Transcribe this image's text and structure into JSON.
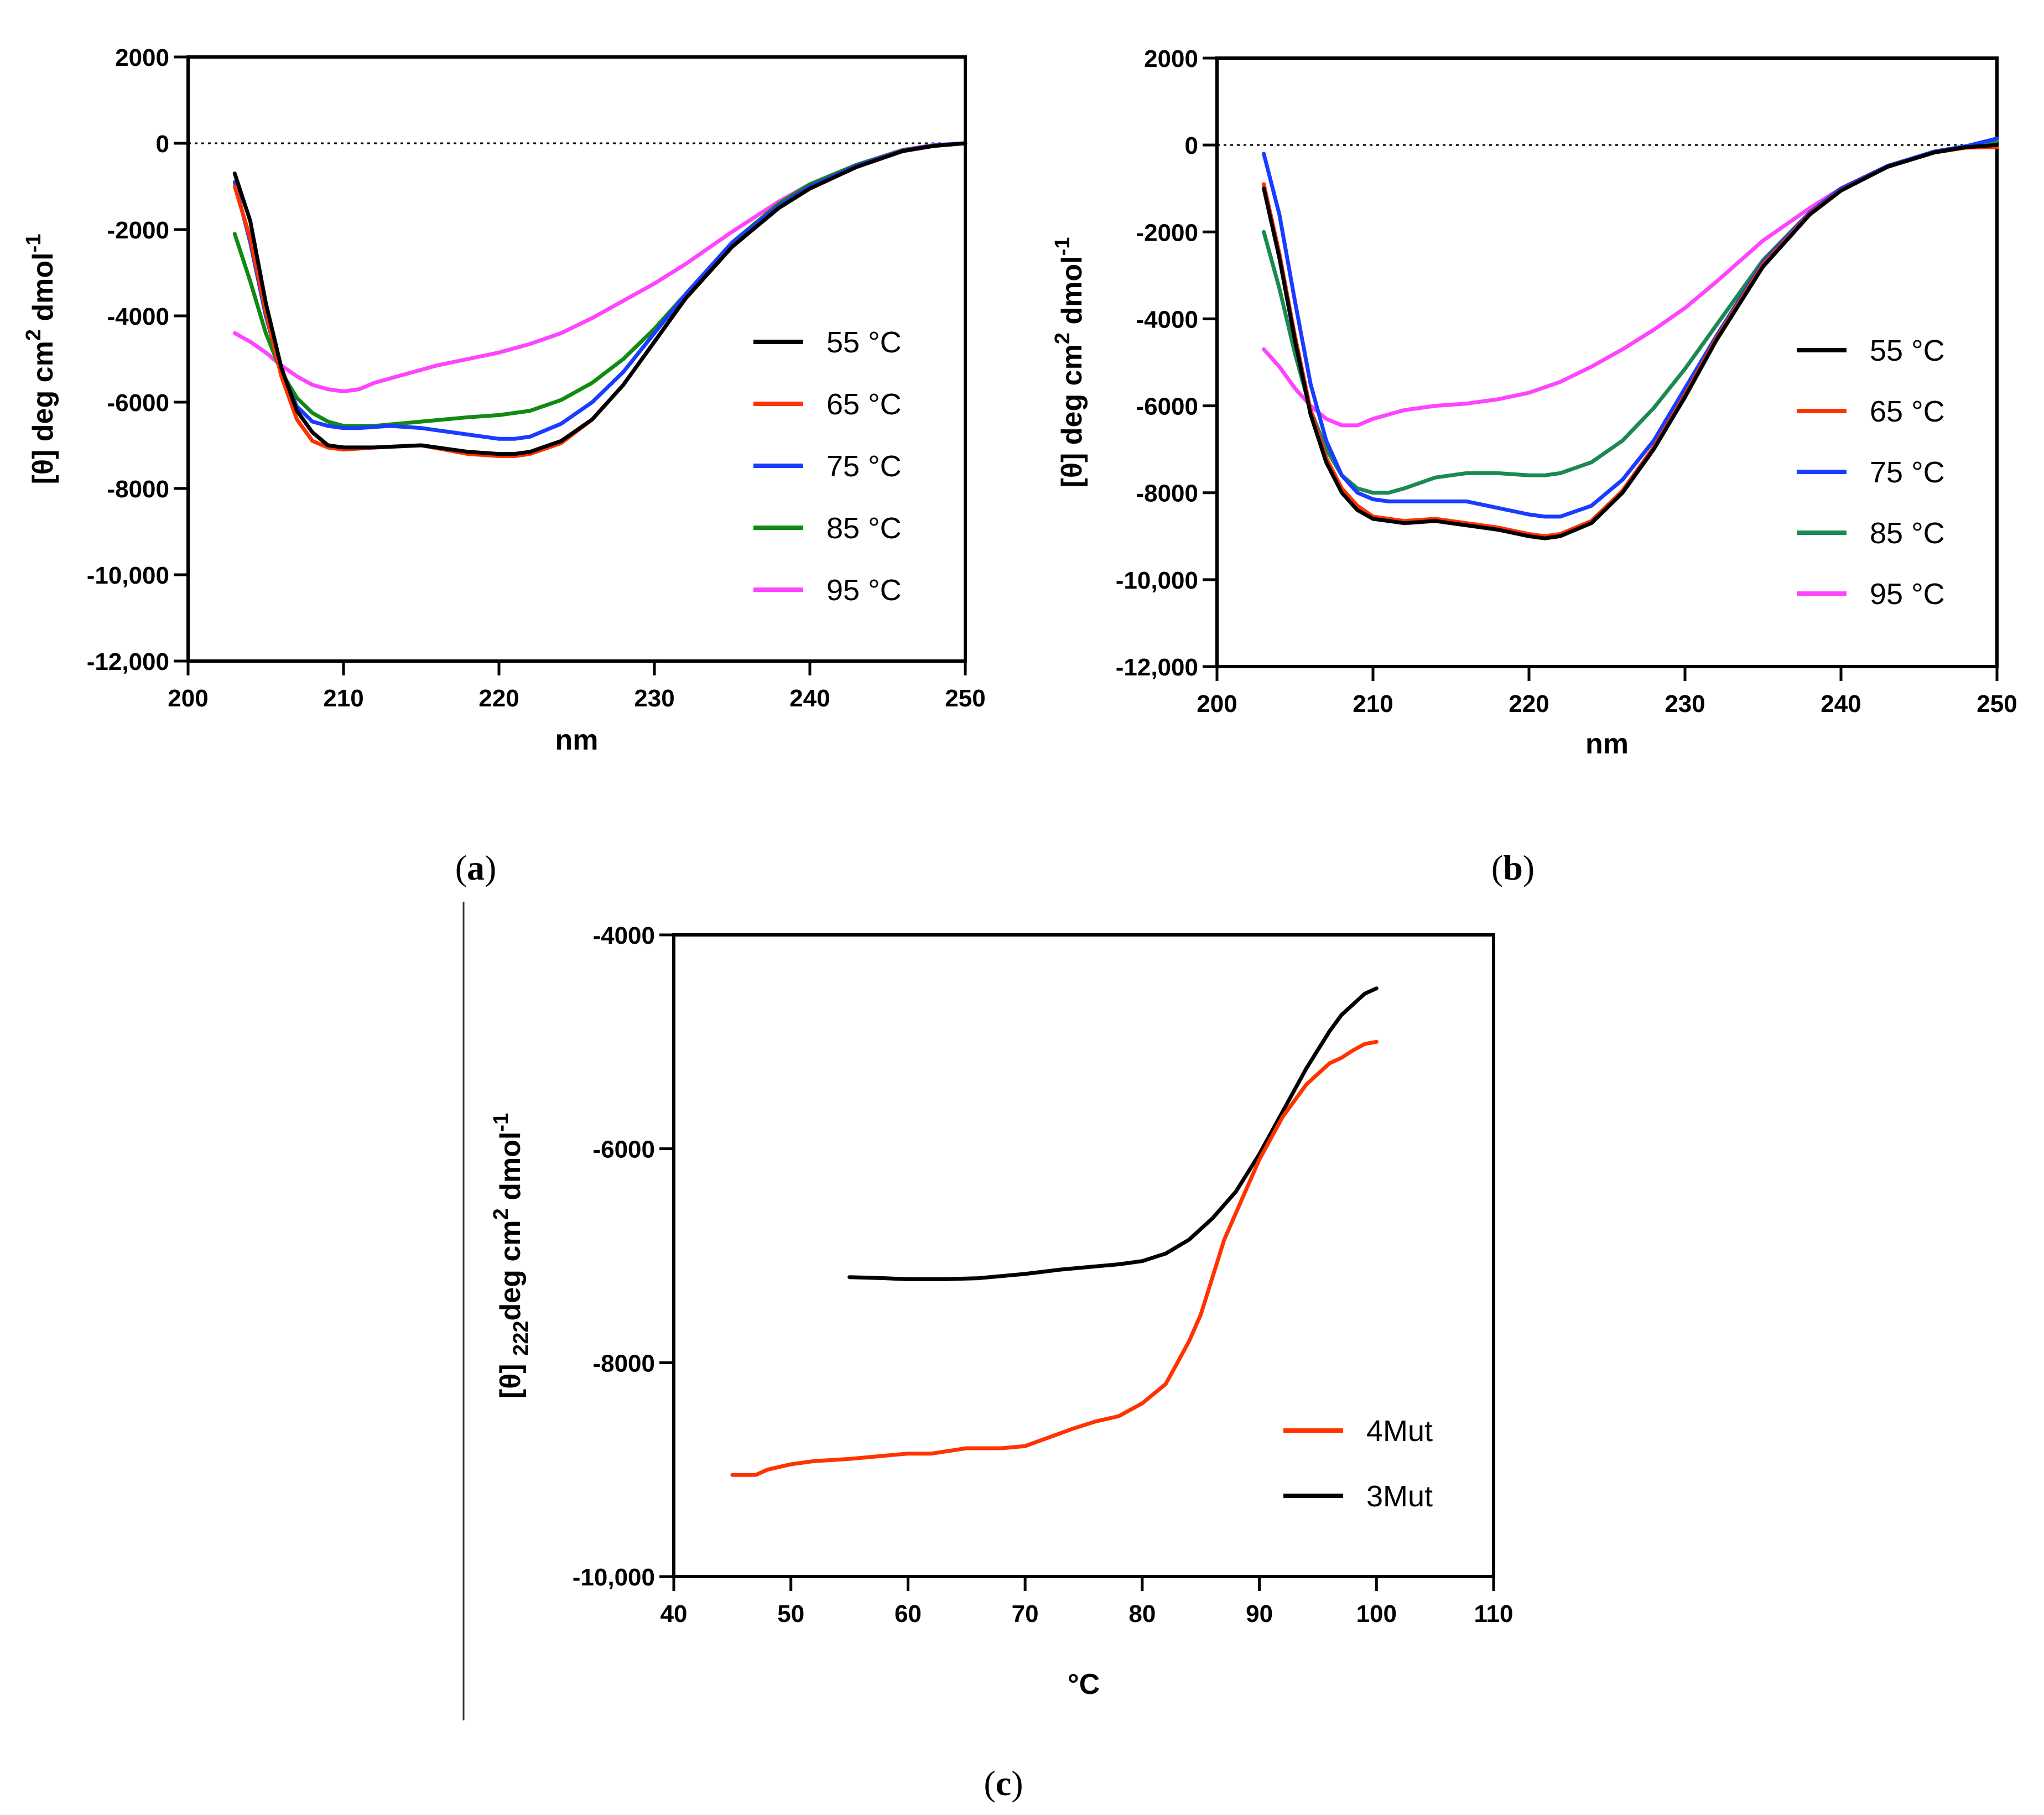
{
  "chart_data": [
    {
      "type": "line",
      "panel_label": "(a)",
      "xlabel": "nm",
      "ylabel": {
        "base": "[θ] deg cm",
        "sup": "2",
        "mid": " dmol",
        "sup2": "-1"
      },
      "xlim": [
        200,
        250
      ],
      "ylim": [
        -12000,
        2000
      ],
      "xticks": [
        200,
        210,
        220,
        230,
        240,
        250
      ],
      "xtick_labels": [
        "200",
        "210",
        "220",
        "230",
        "240",
        "250"
      ],
      "yticks": [
        2000,
        0,
        -2000,
        -4000,
        -6000,
        -8000,
        -10000,
        -12000
      ],
      "ytick_labels": [
        "2000",
        "0",
        "-2000",
        "-4000",
        "-6000",
        "-8000",
        "-10,000",
        "-12,000"
      ],
      "zero_line": true,
      "legend_position": "right",
      "series": [
        {
          "name": "55 °C",
          "color": "#000000",
          "x": [
            203,
            204,
            205,
            206,
            207,
            208,
            209,
            210,
            212,
            215,
            218,
            220,
            221,
            222,
            224,
            226,
            228,
            230,
            232,
            235,
            238,
            240,
            243,
            246,
            248,
            250
          ],
          "y": [
            -700,
            -1800,
            -3700,
            -5200,
            -6200,
            -6700,
            -7000,
            -7050,
            -7050,
            -7000,
            -7150,
            -7200,
            -7200,
            -7150,
            -6900,
            -6400,
            -5600,
            -4600,
            -3600,
            -2400,
            -1500,
            -1050,
            -550,
            -180,
            -60,
            0
          ]
        },
        {
          "name": "65 °C",
          "color": "#ff3300",
          "x": [
            203,
            204,
            205,
            206,
            207,
            208,
            209,
            210,
            212,
            215,
            218,
            220,
            221,
            222,
            224,
            226,
            228,
            230,
            232,
            235,
            238,
            240,
            243,
            246,
            248,
            250
          ],
          "y": [
            -1000,
            -2200,
            -3900,
            -5400,
            -6400,
            -6900,
            -7050,
            -7100,
            -7050,
            -7000,
            -7200,
            -7250,
            -7250,
            -7200,
            -6950,
            -6400,
            -5600,
            -4600,
            -3600,
            -2400,
            -1500,
            -1050,
            -550,
            -180,
            -60,
            0
          ]
        },
        {
          "name": "75 °C",
          "color": "#1a3cff",
          "x": [
            203,
            204,
            205,
            206,
            207,
            208,
            209,
            210,
            211,
            213,
            215,
            218,
            220,
            221,
            222,
            224,
            226,
            228,
            230,
            232,
            235,
            238,
            240,
            243,
            246,
            248,
            250
          ],
          "y": [
            -900,
            -2300,
            -4000,
            -5300,
            -6100,
            -6450,
            -6550,
            -6600,
            -6600,
            -6550,
            -6600,
            -6750,
            -6850,
            -6850,
            -6800,
            -6500,
            -6000,
            -5300,
            -4400,
            -3500,
            -2300,
            -1450,
            -1000,
            -520,
            -170,
            -50,
            0
          ]
        },
        {
          "name": "85 °C",
          "color": "#118a11",
          "x": [
            203,
            204,
            205,
            206,
            207,
            208,
            209,
            210,
            212,
            215,
            218,
            220,
            222,
            224,
            226,
            228,
            230,
            232,
            235,
            238,
            240,
            243,
            246,
            248,
            250
          ],
          "y": [
            -2100,
            -3200,
            -4400,
            -5300,
            -5900,
            -6250,
            -6450,
            -6550,
            -6550,
            -6450,
            -6350,
            -6300,
            -6200,
            -5950,
            -5550,
            -5000,
            -4300,
            -3500,
            -2300,
            -1400,
            -950,
            -500,
            -160,
            -50,
            0
          ]
        },
        {
          "name": "95 °C",
          "color": "#ff44ff",
          "x": [
            203,
            204,
            205,
            206,
            207,
            208,
            209,
            210,
            211,
            212,
            214,
            216,
            218,
            220,
            222,
            224,
            226,
            228,
            230,
            232,
            235,
            238,
            240,
            243,
            246,
            248,
            250
          ],
          "y": [
            -4400,
            -4600,
            -4850,
            -5150,
            -5400,
            -5600,
            -5700,
            -5750,
            -5700,
            -5550,
            -5350,
            -5150,
            -5000,
            -4850,
            -4650,
            -4400,
            -4050,
            -3650,
            -3250,
            -2800,
            -2050,
            -1350,
            -950,
            -500,
            -150,
            -40,
            0
          ]
        }
      ]
    },
    {
      "type": "line",
      "panel_label": "(b)",
      "xlabel": "nm",
      "ylabel": {
        "base": "[θ] deg cm",
        "sup": "2",
        "mid": " dmol",
        "sup2": "-1"
      },
      "xlim": [
        200,
        250
      ],
      "ylim": [
        -12000,
        2000
      ],
      "xticks": [
        200,
        210,
        220,
        230,
        240,
        250
      ],
      "xtick_labels": [
        "200",
        "210",
        "220",
        "230",
        "240",
        "250"
      ],
      "yticks": [
        2000,
        0,
        -2000,
        -4000,
        -6000,
        -8000,
        -10000,
        -12000
      ],
      "ytick_labels": [
        "2000",
        "0",
        "-2000",
        "-4000",
        "-6000",
        "-8000",
        "-10,000",
        "-12,000"
      ],
      "zero_line": true,
      "legend_position": "right",
      "series": [
        {
          "name": "55 °C",
          "color": "#000000",
          "x": [
            203,
            204,
            205,
            206,
            207,
            208,
            209,
            210,
            212,
            214,
            216,
            218,
            220,
            221,
            222,
            224,
            226,
            228,
            230,
            232,
            235,
            238,
            240,
            243,
            246,
            248,
            250
          ],
          "y": [
            -1000,
            -2600,
            -4500,
            -6200,
            -7300,
            -8000,
            -8400,
            -8600,
            -8700,
            -8650,
            -8750,
            -8850,
            -9000,
            -9050,
            -9000,
            -8700,
            -8000,
            -7000,
            -5800,
            -4500,
            -2800,
            -1600,
            -1050,
            -500,
            -170,
            -50,
            0
          ]
        },
        {
          "name": "65 °C",
          "color": "#ff3300",
          "x": [
            203,
            204,
            205,
            206,
            207,
            208,
            209,
            210,
            212,
            214,
            216,
            218,
            220,
            221,
            222,
            224,
            226,
            228,
            230,
            232,
            235,
            238,
            240,
            243,
            246,
            248,
            250
          ],
          "y": [
            -900,
            -2500,
            -4400,
            -6100,
            -7200,
            -7900,
            -8300,
            -8550,
            -8650,
            -8600,
            -8700,
            -8800,
            -8950,
            -9000,
            -8950,
            -8650,
            -7950,
            -6950,
            -5750,
            -4450,
            -2750,
            -1580,
            -1040,
            -500,
            -170,
            -60,
            -50
          ]
        },
        {
          "name": "75 °C",
          "color": "#1a3cff",
          "x": [
            203,
            204,
            205,
            206,
            207,
            208,
            209,
            210,
            211,
            212,
            214,
            216,
            218,
            220,
            221,
            222,
            224,
            226,
            228,
            230,
            232,
            235,
            238,
            240,
            243,
            246,
            248,
            250
          ],
          "y": [
            -200,
            -1600,
            -3600,
            -5500,
            -6800,
            -7600,
            -8000,
            -8150,
            -8200,
            -8200,
            -8200,
            -8200,
            -8350,
            -8500,
            -8550,
            -8550,
            -8300,
            -7700,
            -6800,
            -5600,
            -4400,
            -2700,
            -1550,
            -1000,
            -480,
            -150,
            -30,
            150
          ]
        },
        {
          "name": "85 °C",
          "color": "#1a8a50",
          "x": [
            203,
            204,
            205,
            206,
            207,
            208,
            209,
            210,
            211,
            212,
            214,
            216,
            218,
            220,
            221,
            222,
            224,
            226,
            228,
            230,
            232,
            235,
            238,
            240,
            243,
            246,
            248,
            250
          ],
          "y": [
            -2000,
            -3300,
            -4800,
            -6100,
            -7000,
            -7600,
            -7900,
            -8000,
            -8000,
            -7900,
            -7650,
            -7550,
            -7550,
            -7600,
            -7600,
            -7550,
            -7300,
            -6800,
            -6050,
            -5150,
            -4150,
            -2650,
            -1550,
            -1000,
            -480,
            -150,
            -30,
            100
          ]
        },
        {
          "name": "95 °C",
          "color": "#ff44ff",
          "x": [
            203,
            204,
            205,
            206,
            207,
            208,
            209,
            210,
            212,
            214,
            216,
            218,
            220,
            222,
            224,
            226,
            228,
            230,
            232,
            235,
            238,
            240,
            243,
            246,
            248,
            250
          ],
          "y": [
            -4700,
            -5100,
            -5600,
            -6000,
            -6300,
            -6450,
            -6450,
            -6300,
            -6100,
            -6000,
            -5950,
            -5850,
            -5700,
            -5450,
            -5100,
            -4700,
            -4250,
            -3750,
            -3150,
            -2200,
            -1450,
            -1000,
            -480,
            -150,
            -30,
            100
          ]
        }
      ]
    },
    {
      "type": "line",
      "panel_label": "(c)",
      "xlabel": "°C",
      "ylabel": {
        "base": "[θ] ",
        "sub": "222",
        "mid": "deg cm",
        "sup": "2",
        "mid2": " dmol",
        "sup2": "-1"
      },
      "xlim": [
        40,
        110
      ],
      "ylim": [
        -10000,
        -4000
      ],
      "xticks": [
        40,
        50,
        60,
        70,
        80,
        90,
        100,
        110
      ],
      "xtick_labels": [
        "40",
        "50",
        "60",
        "70",
        "80",
        "90",
        "100",
        "110"
      ],
      "yticks": [
        -4000,
        -6000,
        -8000,
        -10000
      ],
      "ytick_labels": [
        "-4000",
        "-6000",
        "-8000",
        "-10,000"
      ],
      "zero_line": false,
      "legend_position": "bottom-right",
      "series": [
        {
          "name": "4Mut",
          "color": "#ff3300",
          "x": [
            45,
            47,
            48,
            50,
            52,
            55,
            58,
            60,
            62,
            65,
            68,
            70,
            72,
            74,
            76,
            78,
            80,
            82,
            83,
            84,
            85,
            86,
            87,
            88,
            89,
            90,
            91,
            92,
            93,
            94,
            95,
            96,
            97,
            98,
            99,
            100
          ],
          "y": [
            -9050,
            -9050,
            -9000,
            -8950,
            -8920,
            -8900,
            -8870,
            -8850,
            -8850,
            -8800,
            -8800,
            -8780,
            -8700,
            -8620,
            -8550,
            -8500,
            -8380,
            -8200,
            -8000,
            -7800,
            -7550,
            -7200,
            -6850,
            -6600,
            -6350,
            -6100,
            -5900,
            -5700,
            -5550,
            -5400,
            -5300,
            -5200,
            -5150,
            -5080,
            -5020,
            -5000
          ]
        },
        {
          "name": "3Mut",
          "color": "#000000",
          "x": [
            55,
            58,
            60,
            63,
            66,
            70,
            73,
            76,
            78,
            80,
            82,
            84,
            86,
            88,
            90,
            92,
            94,
            96,
            97,
            98,
            99,
            100
          ],
          "y": [
            -7200,
            -7210,
            -7220,
            -7220,
            -7210,
            -7170,
            -7130,
            -7100,
            -7080,
            -7050,
            -6980,
            -6850,
            -6650,
            -6400,
            -6050,
            -5650,
            -5250,
            -4900,
            -4750,
            -4650,
            -4550,
            -4500
          ]
        }
      ]
    }
  ]
}
